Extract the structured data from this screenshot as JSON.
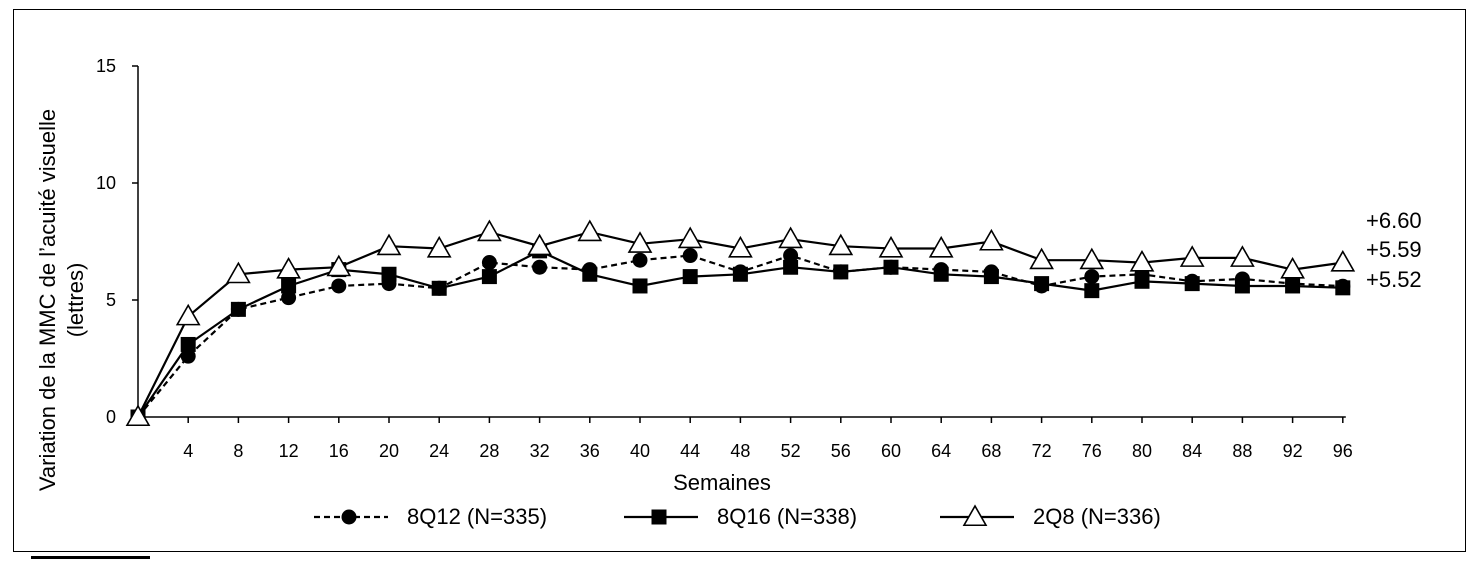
{
  "chart_data": {
    "type": "line",
    "xlabel": "Semaines",
    "ylabel": [
      "Variation de la MMC de l’acuité visuelle",
      "(lettres)"
    ],
    "ylim": [
      0,
      15
    ],
    "yticks": [
      "0",
      "5",
      "10",
      "15"
    ],
    "x": [
      0,
      4,
      8,
      12,
      16,
      20,
      24,
      28,
      32,
      36,
      40,
      44,
      48,
      52,
      56,
      60,
      64,
      68,
      72,
      76,
      80,
      84,
      88,
      92,
      96
    ],
    "xtick_labels": [
      "4",
      "8",
      "12",
      "16",
      "20",
      "24",
      "28",
      "32",
      "36",
      "40",
      "44",
      "48",
      "52",
      "56",
      "60",
      "64",
      "68",
      "72",
      "76",
      "80",
      "84",
      "88",
      "92",
      "96"
    ],
    "grid": false,
    "legend_position": "bottom",
    "series": [
      {
        "name": "8Q12 (N=335)",
        "line_style": "dashed",
        "marker": "circle",
        "color": "#000000",
        "values": [
          0,
          2.6,
          4.6,
          5.1,
          5.6,
          5.7,
          5.5,
          6.6,
          6.4,
          6.3,
          6.7,
          6.9,
          6.2,
          6.9,
          6.2,
          6.4,
          6.3,
          6.2,
          5.6,
          6.0,
          6.1,
          5.8,
          5.9,
          5.7,
          5.59
        ]
      },
      {
        "name": "8Q16 (N=338)",
        "line_style": "solid",
        "marker": "square",
        "color": "#000000",
        "values": [
          0,
          3.1,
          4.6,
          5.6,
          6.3,
          6.1,
          5.5,
          6.0,
          7.1,
          6.1,
          5.6,
          6.0,
          6.1,
          6.4,
          6.2,
          6.4,
          6.1,
          6.0,
          5.7,
          5.4,
          5.8,
          5.7,
          5.6,
          5.6,
          5.52
        ]
      },
      {
        "name": "2Q8 (N=336)",
        "line_style": "solid",
        "marker": "triangle-open",
        "color": "#000000",
        "values": [
          0,
          4.3,
          6.1,
          6.3,
          6.4,
          7.3,
          7.2,
          7.9,
          7.3,
          7.9,
          7.4,
          7.6,
          7.2,
          7.6,
          7.3,
          7.2,
          7.2,
          7.5,
          6.7,
          6.7,
          6.6,
          6.8,
          6.8,
          6.3,
          6.6
        ]
      }
    ],
    "end_labels": [
      "+6.60",
      "+5.59",
      "+5.52"
    ]
  }
}
